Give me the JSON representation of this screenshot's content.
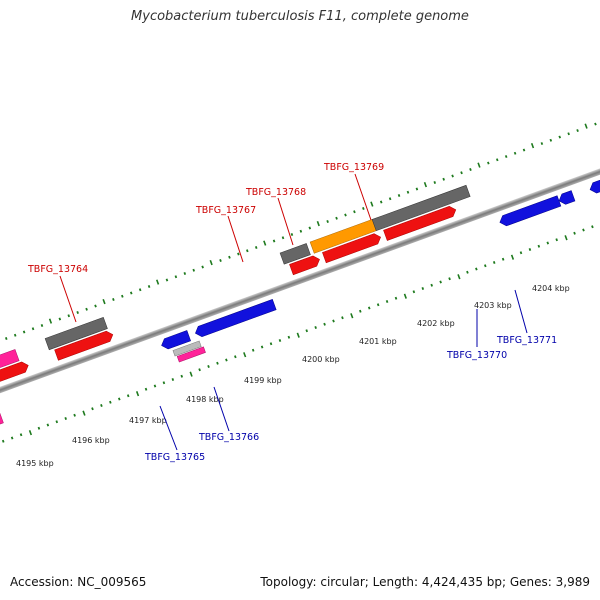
{
  "title": "Mycobacterium tuberculosis F11, complete genome",
  "footer": {
    "accession": "Accession: NC_009565",
    "topology": "Topology: circular; Length: 4,424,435 bp; Genes: 3,989"
  },
  "kbp_labels": [
    "4195 kbp",
    "4196 kbp",
    "4197 kbp",
    "4198 kbp",
    "4199 kbp",
    "4200 kbp",
    "4201 kbp",
    "4202 kbp",
    "4203 kbp",
    "4204 kbp"
  ],
  "gene_labels_top": [
    "TBFG_13764",
    "TBFG_13767",
    "TBFG_13768",
    "TBFG_13769"
  ],
  "gene_labels_bottom": [
    "TBFG_13765",
    "TBFG_13766",
    "TBFG_13770",
    "TBFG_13771"
  ],
  "colors": {
    "backbone": "#8a8a8a",
    "tick": "#1e7a1e",
    "cds_red": "#ee1111",
    "cds_blue": "#1111dd",
    "cds_grey": "#666666",
    "cds_orange": "#ff9900",
    "cds_pink": "#ff2299",
    "label_red": "#cc0000",
    "label_blue": "#0000aa"
  }
}
